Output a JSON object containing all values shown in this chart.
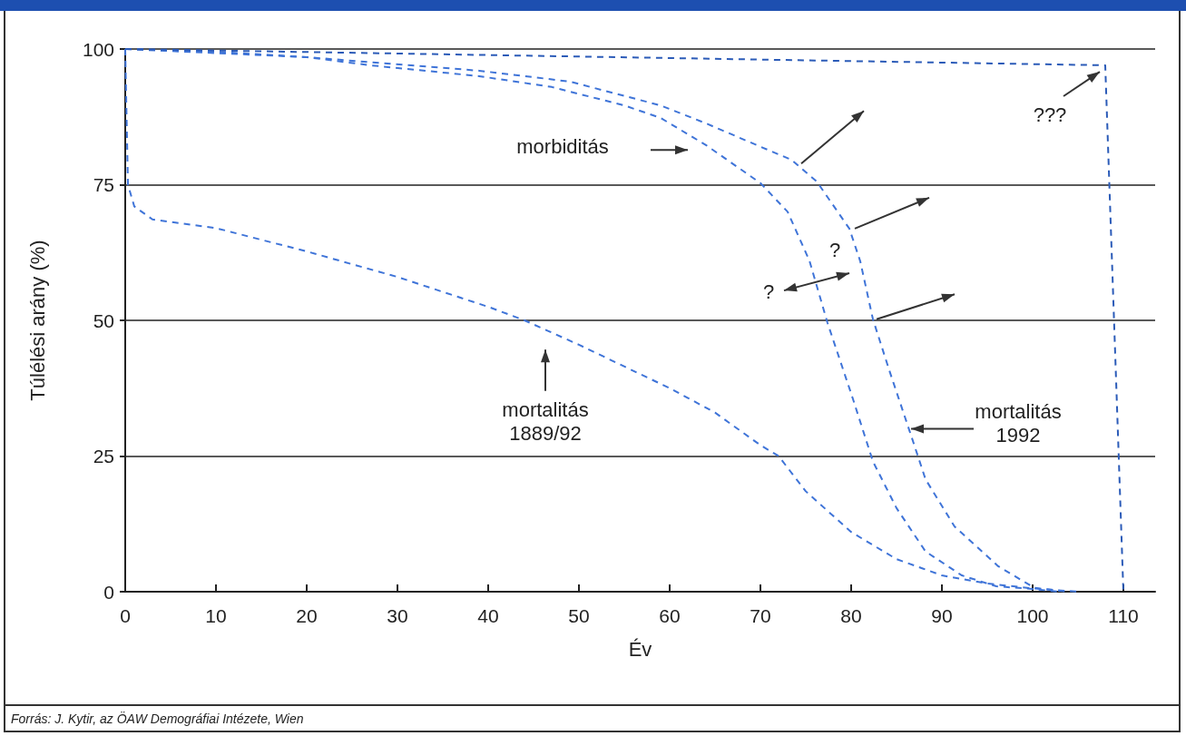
{
  "chart_data": {
    "type": "line",
    "xlabel": "Év",
    "ylabel": "Túlélési arány (%)",
    "series": [
      {
        "color": "#3f74d8",
        "x": [
          0,
          0.3,
          1,
          3,
          10,
          20,
          30,
          40,
          44,
          50,
          60,
          65,
          70,
          72,
          75,
          80,
          85,
          90,
          95,
          100,
          105
        ],
        "values": [
          100,
          75,
          71,
          68.6,
          67,
          62.7,
          58,
          52.5,
          50,
          45.5,
          37.5,
          33,
          27,
          25,
          18.5,
          11,
          6,
          3,
          1.5,
          0.6,
          0
        ]
      },
      {
        "color": "#3f74d8",
        "x": [
          0,
          10,
          20,
          27,
          39,
          47,
          55,
          59,
          64,
          70,
          73,
          75.4,
          77.4,
          80.2,
          82.4,
          85,
          88.2,
          92.2,
          96,
          100,
          103
        ],
        "values": [
          100,
          99.5,
          98.5,
          97,
          95,
          93,
          89.6,
          87.3,
          82.3,
          75.3,
          70,
          61,
          49.5,
          35.5,
          24,
          15.4,
          7.4,
          3,
          1,
          0.5,
          0
        ]
      },
      {
        "color": "#3f74d8",
        "x": [
          0,
          20,
          39,
          49,
          59,
          64,
          70,
          73.4,
          76.2,
          79.8,
          81,
          82.4,
          84.2,
          86.6,
          88.2,
          91.4,
          96.2,
          100.2,
          104
        ],
        "values": [
          100,
          98.5,
          96,
          94,
          89.6,
          86.3,
          82,
          79.6,
          75.6,
          66.9,
          60.9,
          50.2,
          40.8,
          28.8,
          20.7,
          12,
          4.7,
          0.7,
          0
        ]
      },
      {
        "color": "#2b5bb8",
        "x": [
          0,
          108,
          110
        ],
        "values": [
          100,
          97,
          0
        ]
      }
    ],
    "xlim": [
      0,
      113.5
    ],
    "xticks": [
      0,
      10,
      20,
      30,
      40,
      50,
      60,
      70,
      80,
      90,
      100,
      110
    ],
    "ylim": [
      0,
      100
    ],
    "yticks": [
      0,
      25,
      50,
      75,
      100
    ],
    "grid": "y",
    "marker": "none",
    "line_style": "dashed",
    "annotations": [
      "morbiditás",
      "mortalitás\n1889/92",
      {
        "text": "mortalitás\n1992",
        "x": 86.6,
        "y": 30
      },
      "?",
      "?",
      "???",
      "Forrás: J. Kytir, az ÖAW Demográfiai Intézete, Wien"
    ]
  }
}
